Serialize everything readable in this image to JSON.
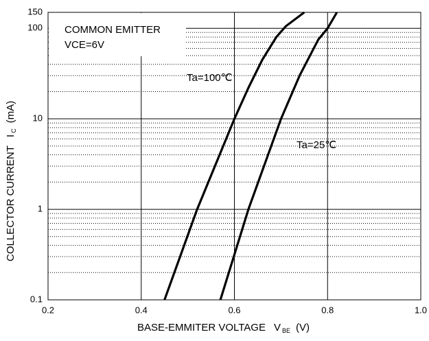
{
  "chart_data": {
    "type": "line",
    "xlabel": "BASE-EMMITER VOLTAGE",
    "xlabel_symbol": "V",
    "xlabel_subscript": "BE",
    "xlabel_unit": "(V)",
    "ylabel": "COLLECTOR CURRENT",
    "ylabel_symbol": "I",
    "ylabel_subscript": "C",
    "ylabel_unit": "(mA)",
    "annotations": [
      "COMMON EMITTER",
      "VCE=6V"
    ],
    "xlim": [
      0.2,
      1.0
    ],
    "xticks": [
      0.2,
      0.4,
      0.6,
      0.8,
      {
        "value": 1.0,
        "label": "1.0"
      }
    ],
    "ylim": [
      0.1,
      150
    ],
    "yticks": [
      0.1,
      1,
      10,
      100,
      150
    ],
    "yminor": [
      0.2,
      0.3,
      0.4,
      0.5,
      0.6,
      0.7,
      0.8,
      0.9,
      2,
      3,
      4,
      5,
      6,
      7,
      8,
      9,
      20,
      30,
      40,
      50,
      60,
      70,
      80,
      90
    ],
    "ylog": true,
    "grid": true,
    "series": [
      {
        "name": "Ta=100℃",
        "color": "#000000",
        "x": [
          0.45,
          0.52,
          0.6,
          0.63,
          0.66,
          0.69,
          0.71,
          0.75
        ],
        "values": [
          0.1,
          1,
          10,
          22,
          45,
          80,
          105,
          150
        ]
      },
      {
        "name": "Ta=25℃",
        "color": "#000000",
        "x": [
          0.57,
          0.63,
          0.7,
          0.74,
          0.78,
          0.8,
          0.82
        ],
        "values": [
          0.1,
          1,
          10,
          30,
          75,
          100,
          150
        ]
      }
    ]
  }
}
